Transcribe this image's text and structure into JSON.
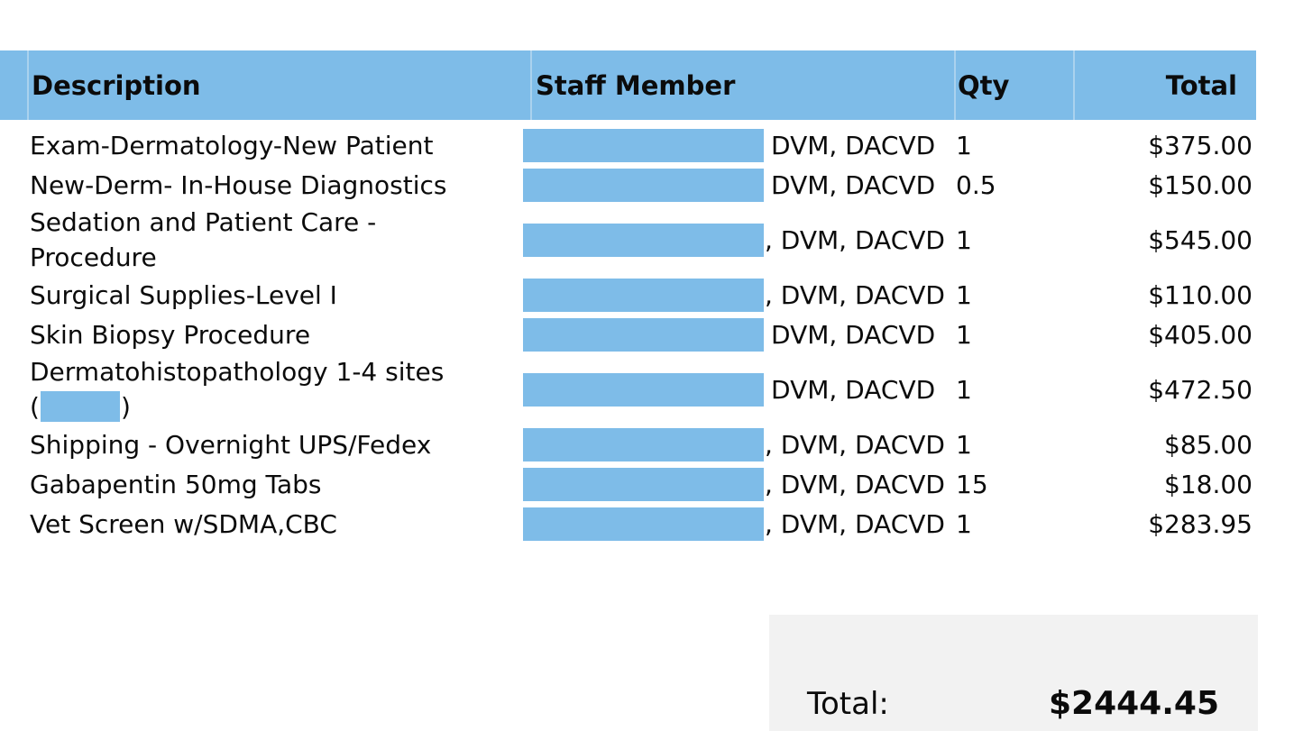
{
  "colors": {
    "accent_blue": "#7ebce8",
    "separator_blue": "#aad2ee",
    "summary_bg": "#f2f2f2"
  },
  "table": {
    "columns": [
      {
        "id": "description",
        "label": "Description"
      },
      {
        "id": "staff",
        "label": "Staff Member"
      },
      {
        "id": "qty",
        "label": "Qty"
      },
      {
        "id": "total",
        "label": "Total"
      }
    ],
    "rows": [
      {
        "description_lines": [
          "Exam-Dermatology-New Patient"
        ],
        "staff_redacted": true,
        "staff_suffix": "DVM, DACVD",
        "qty": "1",
        "total": "$375.00"
      },
      {
        "description_lines": [
          "New-Derm- In-House Diagnostics"
        ],
        "staff_redacted": true,
        "staff_suffix": "DVM, DACVD",
        "qty": "0.5",
        "total": "$150.00"
      },
      {
        "description_lines": [
          "Sedation and Patient Care -",
          "Procedure"
        ],
        "staff_redacted": true,
        "staff_suffix": ", DVM, DACVD",
        "qty": "1",
        "total": "$545.00"
      },
      {
        "description_lines": [
          "Surgical Supplies-Level I"
        ],
        "staff_redacted": true,
        "staff_suffix": ", DVM, DACVD",
        "qty": "1",
        "total": "$110.00"
      },
      {
        "description_lines": [
          "Skin Biopsy Procedure"
        ],
        "staff_redacted": true,
        "staff_suffix": "DVM, DACVD",
        "qty": "1",
        "total": "$405.00"
      },
      {
        "description_lines": [
          "Dermatohistopathology 1-4 sites",
          {
            "pre": "(",
            "redacted": true,
            "post": ")"
          }
        ],
        "staff_redacted": true,
        "staff_suffix": "DVM, DACVD",
        "qty": "1",
        "total": "$472.50"
      },
      {
        "description_lines": [
          "Shipping - Overnight UPS/Fedex"
        ],
        "staff_redacted": true,
        "staff_suffix": ", DVM, DACVD",
        "qty": "1",
        "total": "$85.00"
      },
      {
        "description_lines": [
          "Gabapentin 50mg Tabs"
        ],
        "staff_redacted": true,
        "staff_suffix": ", DVM, DACVD",
        "qty": "15",
        "total": "$18.00"
      },
      {
        "description_lines": [
          "Vet Screen w/SDMA,CBC"
        ],
        "staff_redacted": true,
        "staff_suffix": ", DVM, DACVD",
        "qty": "1",
        "total": "$283.95"
      }
    ]
  },
  "summary": {
    "total_label": "Total:",
    "total_value": "$2444.45"
  }
}
